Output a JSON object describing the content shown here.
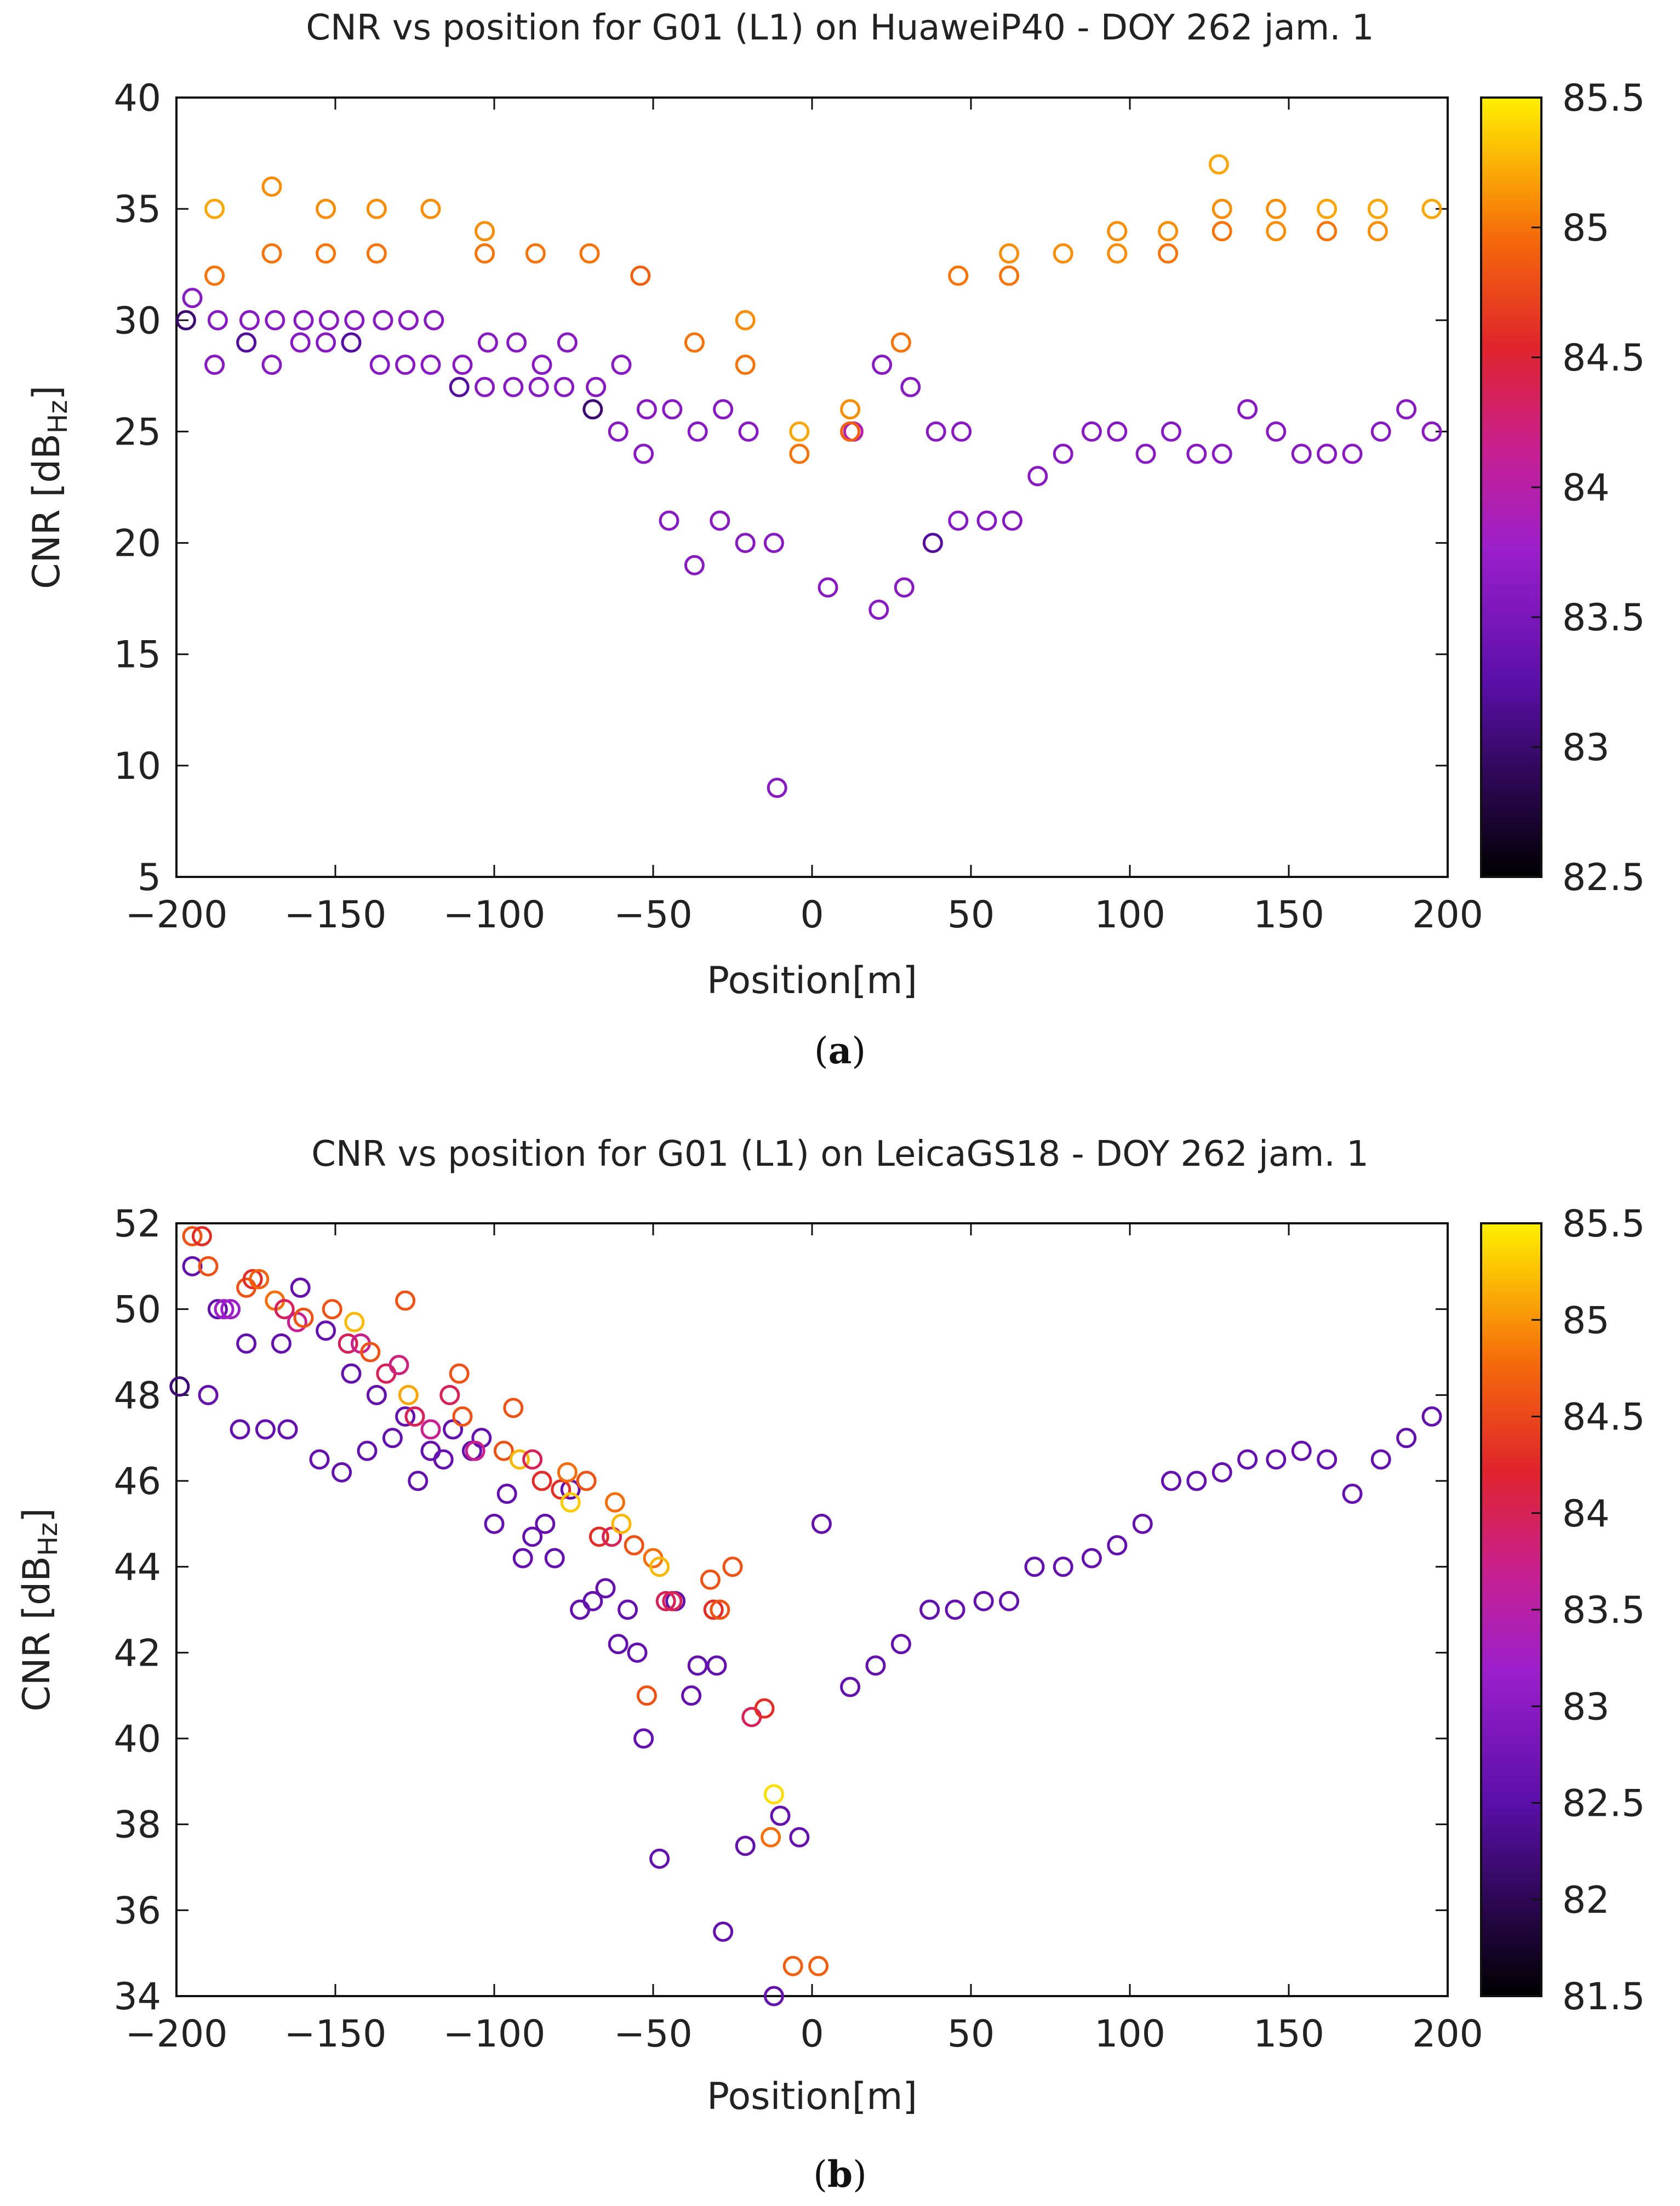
{
  "chart_data": [
    {
      "id": "a",
      "type": "scatter",
      "title": "CNR vs position for G01 (L1) on HuaweiP40 - DOY 262 jam. 1",
      "xlabel": "Position[m]",
      "ylabel_main": "CNR [dB",
      "ylabel_sub": "Hz",
      "ylabel_close": "]",
      "caption": "a",
      "xlim": [
        -200,
        200
      ],
      "ylim": [
        5,
        40
      ],
      "xticks": [
        -200,
        -150,
        -100,
        -50,
        0,
        50,
        100,
        150,
        200
      ],
      "yticks": [
        5,
        10,
        15,
        20,
        25,
        30,
        35,
        40
      ],
      "colorbar": {
        "min": 82.5,
        "max": 85.5,
        "ticks": [
          82.5,
          83,
          83.5,
          84,
          84.5,
          85,
          85.5
        ]
      },
      "points": [
        [
          -197,
          30,
          83.0
        ],
        [
          -195,
          31,
          83.6
        ],
        [
          -188,
          28,
          83.6
        ],
        [
          -187,
          30,
          83.6
        ],
        [
          -178,
          29,
          83.2
        ],
        [
          -177,
          30,
          83.6
        ],
        [
          -170,
          28,
          83.6
        ],
        [
          -169,
          30,
          83.6
        ],
        [
          -161,
          29,
          83.6
        ],
        [
          -160,
          30,
          83.6
        ],
        [
          -153,
          29,
          83.6
        ],
        [
          -152,
          30,
          83.6
        ],
        [
          -145,
          29,
          83.2
        ],
        [
          -144,
          30,
          83.6
        ],
        [
          -136,
          28,
          83.6
        ],
        [
          -135,
          30,
          83.6
        ],
        [
          -128,
          28,
          83.6
        ],
        [
          -127,
          30,
          83.6
        ],
        [
          -120,
          28,
          83.6
        ],
        [
          -119,
          30,
          83.6
        ],
        [
          -111,
          27,
          83.2
        ],
        [
          -110,
          28,
          83.6
        ],
        [
          -103,
          27,
          83.6
        ],
        [
          -102,
          29,
          83.6
        ],
        [
          -94,
          27,
          83.6
        ],
        [
          -93,
          29,
          83.6
        ],
        [
          -86,
          27,
          83.6
        ],
        [
          -85,
          28,
          83.6
        ],
        [
          -78,
          27,
          83.6
        ],
        [
          -77,
          29,
          83.6
        ],
        [
          -69,
          26,
          83.0
        ],
        [
          -68,
          27,
          83.6
        ],
        [
          -61,
          25,
          83.6
        ],
        [
          -60,
          28,
          83.6
        ],
        [
          -53,
          24,
          83.6
        ],
        [
          -52,
          26,
          83.6
        ],
        [
          -45,
          21,
          83.6
        ],
        [
          -44,
          26,
          83.6
        ],
        [
          -37,
          19,
          83.6
        ],
        [
          -36,
          25,
          83.6
        ],
        [
          -29,
          21,
          83.6
        ],
        [
          -28,
          26,
          83.6
        ],
        [
          -21,
          20,
          83.6
        ],
        [
          -20,
          25,
          83.6
        ],
        [
          -12,
          20,
          83.6
        ],
        [
          -11,
          9,
          83.6
        ],
        [
          5,
          18,
          83.6
        ],
        [
          13,
          25,
          84.0
        ],
        [
          21,
          17,
          83.6
        ],
        [
          22,
          28,
          83.6
        ],
        [
          29,
          18,
          83.6
        ],
        [
          31,
          27,
          83.6
        ],
        [
          38,
          20,
          83.2
        ],
        [
          39,
          25,
          83.6
        ],
        [
          46,
          21,
          83.6
        ],
        [
          47,
          25,
          83.6
        ],
        [
          55,
          21,
          83.6
        ],
        [
          63,
          21,
          83.6
        ],
        [
          71,
          23,
          83.6
        ],
        [
          79,
          24,
          83.6
        ],
        [
          88,
          25,
          83.6
        ],
        [
          96,
          25,
          83.6
        ],
        [
          105,
          24,
          83.6
        ],
        [
          113,
          25,
          83.6
        ],
        [
          121,
          24,
          83.6
        ],
        [
          129,
          24,
          83.6
        ],
        [
          137,
          26,
          83.6
        ],
        [
          146,
          25,
          83.6
        ],
        [
          154,
          24,
          83.6
        ],
        [
          162,
          24,
          83.6
        ],
        [
          170,
          24,
          83.6
        ],
        [
          179,
          25,
          83.6
        ],
        [
          187,
          26,
          83.6
        ],
        [
          195,
          25,
          83.6
        ],
        [
          -188,
          35,
          85.2
        ],
        [
          -188,
          32,
          85.0
        ],
        [
          -170,
          36,
          85.1
        ],
        [
          -170,
          33,
          85.0
        ],
        [
          -153,
          35,
          85.1
        ],
        [
          -153,
          33,
          85.0
        ],
        [
          -137,
          35,
          85.1
        ],
        [
          -137,
          33,
          85.0
        ],
        [
          -120,
          35,
          85.1
        ],
        [
          -103,
          34,
          85.1
        ],
        [
          -103,
          33,
          85.0
        ],
        [
          -87,
          33,
          85.0
        ],
        [
          -70,
          33,
          85.0
        ],
        [
          -54,
          32,
          84.9
        ],
        [
          -37,
          29,
          85.0
        ],
        [
          -21,
          30,
          85.1
        ],
        [
          -21,
          28,
          85.0
        ],
        [
          -4,
          25,
          85.2
        ],
        [
          -4,
          24,
          85.0
        ],
        [
          12,
          26,
          85.1
        ],
        [
          12,
          25,
          84.9
        ],
        [
          28,
          29,
          85.0
        ],
        [
          46,
          32,
          85.0
        ],
        [
          62,
          33,
          85.1
        ],
        [
          62,
          32,
          85.0
        ],
        [
          79,
          33,
          85.1
        ],
        [
          96,
          34,
          85.1
        ],
        [
          96,
          33,
          85.1
        ],
        [
          112,
          34,
          85.1
        ],
        [
          112,
          33,
          85.0
        ],
        [
          128,
          37,
          85.2
        ],
        [
          129,
          35,
          85.1
        ],
        [
          129,
          34,
          85.0
        ],
        [
          146,
          35,
          85.1
        ],
        [
          146,
          34,
          85.1
        ],
        [
          162,
          35,
          85.2
        ],
        [
          162,
          34,
          85.0
        ],
        [
          178,
          35,
          85.2
        ],
        [
          178,
          34,
          85.1
        ],
        [
          195,
          35,
          85.2
        ]
      ]
    },
    {
      "id": "b",
      "type": "scatter",
      "title": "CNR vs position for G01 (L1) on LeicaGS18 - DOY 262 jam. 1",
      "xlabel": "Position[m]",
      "ylabel_main": "CNR [dB",
      "ylabel_sub": "Hz",
      "ylabel_close": "]",
      "caption": "b",
      "xlim": [
        -200,
        200
      ],
      "ylim": [
        34,
        52
      ],
      "xticks": [
        -200,
        -150,
        -100,
        -50,
        0,
        50,
        100,
        150,
        200
      ],
      "yticks": [
        34,
        36,
        38,
        40,
        42,
        44,
        46,
        48,
        50,
        52
      ],
      "colorbar": {
        "min": 81.5,
        "max": 85.5,
        "ticks": [
          81.5,
          82,
          82.5,
          83,
          83.5,
          84,
          84.5,
          85,
          85.5
        ]
      },
      "points": [
        [
          -199,
          48.2,
          82.2
        ],
        [
          -195,
          51,
          82.6
        ],
        [
          -190,
          48,
          82.6
        ],
        [
          -187,
          50,
          82.6
        ],
        [
          -180,
          47.2,
          82.6
        ],
        [
          -178,
          49.2,
          82.6
        ],
        [
          -172,
          47.2,
          82.6
        ],
        [
          -167,
          49.2,
          82.6
        ],
        [
          -165,
          47.2,
          82.6
        ],
        [
          -161,
          50.5,
          82.6
        ],
        [
          -155,
          46.5,
          82.6
        ],
        [
          -153,
          49.5,
          82.6
        ],
        [
          -148,
          46.2,
          82.6
        ],
        [
          -145,
          48.5,
          82.6
        ],
        [
          -140,
          46.7,
          82.6
        ],
        [
          -137,
          48,
          82.6
        ],
        [
          -132,
          47,
          82.6
        ],
        [
          -128,
          47.5,
          82.6
        ],
        [
          -124,
          46,
          82.6
        ],
        [
          -120,
          46.7,
          82.6
        ],
        [
          -116,
          46.5,
          82.6
        ],
        [
          -113,
          47.2,
          82.6
        ],
        [
          -107,
          46.7,
          82.6
        ],
        [
          -104,
          47,
          82.6
        ],
        [
          -100,
          45,
          82.6
        ],
        [
          -96,
          45.7,
          82.6
        ],
        [
          -91,
          44.2,
          82.6
        ],
        [
          -88,
          44.7,
          82.6
        ],
        [
          -84,
          45,
          82.6
        ],
        [
          -81,
          44.2,
          82.6
        ],
        [
          -76,
          45.8,
          82.6
        ],
        [
          -73,
          43,
          82.6
        ],
        [
          -69,
          43.2,
          82.6
        ],
        [
          -65,
          43.5,
          82.6
        ],
        [
          -61,
          42.2,
          82.6
        ],
        [
          -58,
          43,
          82.6
        ],
        [
          -55,
          42,
          82.6
        ],
        [
          -53,
          40,
          82.6
        ],
        [
          -48,
          37.2,
          82.6
        ],
        [
          -43,
          43.2,
          82.6
        ],
        [
          -38,
          41,
          82.6
        ],
        [
          -36,
          41.7,
          82.6
        ],
        [
          -30,
          41.7,
          82.6
        ],
        [
          -28,
          35.5,
          82.6
        ],
        [
          -21,
          37.5,
          82.6
        ],
        [
          -12,
          34,
          82.6
        ],
        [
          -10,
          38.2,
          82.6
        ],
        [
          -4,
          37.7,
          82.6
        ],
        [
          3,
          45,
          82.6
        ],
        [
          12,
          41.2,
          82.6
        ],
        [
          20,
          41.7,
          82.6
        ],
        [
          28,
          42.2,
          82.6
        ],
        [
          37,
          43,
          82.6
        ],
        [
          45,
          43,
          82.6
        ],
        [
          54,
          43.2,
          82.6
        ],
        [
          62,
          43.2,
          82.6
        ],
        [
          70,
          44,
          82.6
        ],
        [
          79,
          44,
          82.6
        ],
        [
          88,
          44.2,
          82.6
        ],
        [
          96,
          44.5,
          82.6
        ],
        [
          104,
          45,
          82.6
        ],
        [
          113,
          46,
          82.6
        ],
        [
          121,
          46,
          82.6
        ],
        [
          129,
          46.2,
          82.6
        ],
        [
          137,
          46.5,
          82.6
        ],
        [
          146,
          46.5,
          82.6
        ],
        [
          154,
          46.7,
          82.6
        ],
        [
          162,
          46.5,
          82.6
        ],
        [
          170,
          45.7,
          82.6
        ],
        [
          179,
          46.5,
          82.6
        ],
        [
          187,
          47,
          82.6
        ],
        [
          195,
          47.5,
          82.6
        ],
        [
          -195,
          51.7,
          84.6
        ],
        [
          -192,
          51.7,
          84.3
        ],
        [
          -190,
          51,
          84.6
        ],
        [
          -185,
          50,
          83.2
        ],
        [
          -183,
          50,
          83.2
        ],
        [
          -178,
          50.5,
          84.6
        ],
        [
          -176,
          50.7,
          84.3
        ],
        [
          -174,
          50.7,
          84.7
        ],
        [
          -169,
          50.2,
          84.8
        ],
        [
          -166,
          50,
          84.0
        ],
        [
          -162,
          49.7,
          83.7
        ],
        [
          -160,
          49.8,
          84.6
        ],
        [
          -151,
          50,
          84.6
        ],
        [
          -146,
          49.2,
          84.0
        ],
        [
          -144,
          49.7,
          85.2
        ],
        [
          -142,
          49.2,
          83.7
        ],
        [
          -139,
          49,
          84.6
        ],
        [
          -134,
          48.5,
          84.0
        ],
        [
          -130,
          48.7,
          83.8
        ],
        [
          -128,
          50.2,
          84.6
        ],
        [
          -127,
          48,
          85.1
        ],
        [
          -125,
          47.5,
          84.0
        ],
        [
          -120,
          47.2,
          83.7
        ],
        [
          -114,
          48,
          84.0
        ],
        [
          -111,
          48.5,
          84.6
        ],
        [
          -110,
          47.5,
          84.6
        ],
        [
          -106,
          46.7,
          83.7
        ],
        [
          -97,
          46.7,
          84.6
        ],
        [
          -94,
          47.7,
          84.6
        ],
        [
          -92,
          46.5,
          85.2
        ],
        [
          -88,
          46.5,
          84.0
        ],
        [
          -85,
          46,
          84.3
        ],
        [
          -79,
          45.8,
          84.3
        ],
        [
          -77,
          46.2,
          84.8
        ],
        [
          -76,
          45.5,
          85.3
        ],
        [
          -71,
          46,
          84.6
        ],
        [
          -67,
          44.7,
          84.3
        ],
        [
          -63,
          44.7,
          84.0
        ],
        [
          -62,
          45.5,
          84.8
        ],
        [
          -60,
          45,
          85.2
        ],
        [
          -56,
          44.5,
          84.6
        ],
        [
          -52,
          41,
          84.6
        ],
        [
          -50,
          44.2,
          84.8
        ],
        [
          -48,
          44,
          85.2
        ],
        [
          -46,
          43.2,
          84.0
        ],
        [
          -44,
          43.2,
          84.0
        ],
        [
          -32,
          43.7,
          84.6
        ],
        [
          -31,
          43,
          84.3
        ],
        [
          -29,
          43,
          84.6
        ],
        [
          -25,
          44,
          84.6
        ],
        [
          -19,
          40.5,
          84.0
        ],
        [
          -15,
          40.7,
          84.3
        ],
        [
          -13,
          37.7,
          84.8
        ],
        [
          -12,
          38.7,
          85.4
        ],
        [
          -6,
          34.7,
          84.7
        ],
        [
          2,
          34.7,
          84.7
        ]
      ]
    }
  ]
}
